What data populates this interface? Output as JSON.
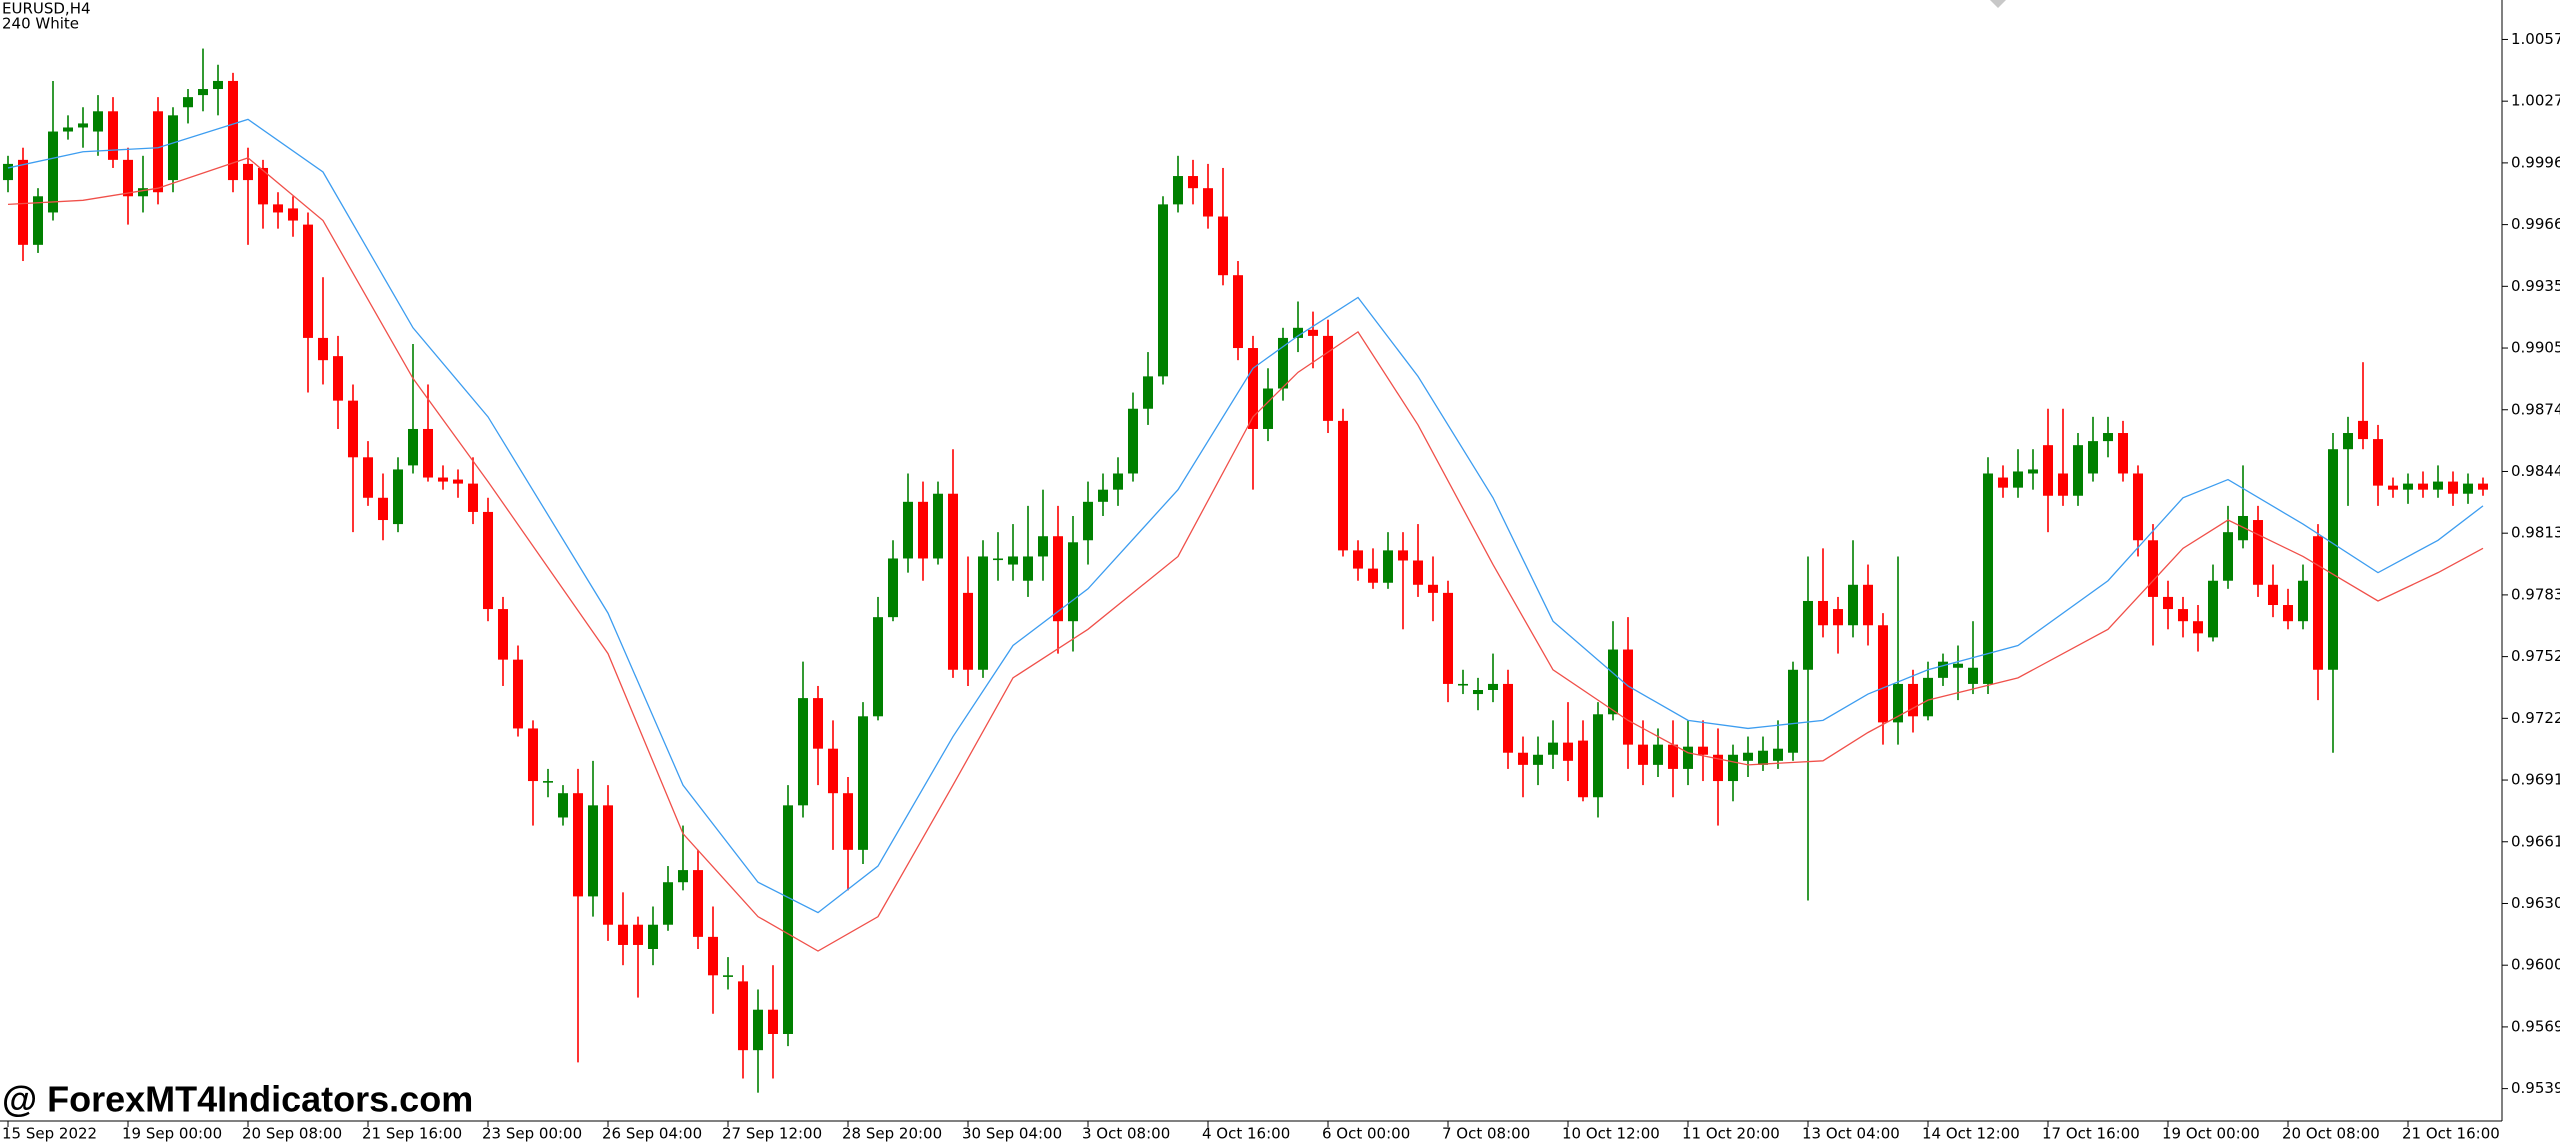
{
  "chart_data": {
    "type": "candlestick",
    "title": "EURUSD,H4",
    "subtitle": "240 White",
    "watermark": "@ ForexMT4Indicators.com",
    "up_color": "#008000",
    "down_color": "#ff0000",
    "ylim": [
      0.9523,
      1.0077
    ],
    "yticks": [
      {
        "value": 1.00575,
        "label": "1.00575"
      },
      {
        "value": 1.0027,
        "label": "1.00270"
      },
      {
        "value": 0.99965,
        "label": "0.99965"
      },
      {
        "value": 0.9966,
        "label": "0.99660"
      },
      {
        "value": 0.99355,
        "label": "0.99355"
      },
      {
        "value": 0.9905,
        "label": "0.99050"
      },
      {
        "value": 0.98745,
        "label": "0.98745"
      },
      {
        "value": 0.9844,
        "label": "0.98440"
      },
      {
        "value": 0.98135,
        "label": "0.98135"
      },
      {
        "value": 0.9783,
        "label": "0.97830"
      },
      {
        "value": 0.97525,
        "label": "0.97525"
      },
      {
        "value": 0.9722,
        "label": "0.97220"
      },
      {
        "value": 0.96915,
        "label": "0.96915"
      },
      {
        "value": 0.9661,
        "label": "0.96610"
      },
      {
        "value": 0.96305,
        "label": "0.96305"
      },
      {
        "value": 0.96,
        "label": "0.96000"
      },
      {
        "value": 0.95695,
        "label": "0.95695"
      },
      {
        "value": 0.9539,
        "label": "0.95390"
      }
    ],
    "categories": [
      "15 Sep 2022",
      null,
      null,
      null,
      null,
      null,
      null,
      null,
      "19 Sep 00:00",
      null,
      null,
      null,
      null,
      null,
      null,
      null,
      "20 Sep 08:00",
      null,
      null,
      null,
      null,
      null,
      null,
      null,
      "21 Sep 16:00",
      null,
      null,
      null,
      null,
      null,
      null,
      null,
      "23 Sep 00:00",
      null,
      null,
      null,
      null,
      null,
      null,
      null,
      "26 Sep 04:00",
      null,
      null,
      null,
      null,
      null,
      null,
      null,
      "27 Sep 12:00",
      null,
      null,
      null,
      null,
      null,
      null,
      null,
      "28 Sep 20:00",
      null,
      null,
      null,
      null,
      null,
      null,
      null,
      "30 Sep 04:00",
      null,
      null,
      null,
      null,
      null,
      null,
      null,
      "3 Oct 08:00",
      null,
      null,
      null,
      null,
      null,
      null,
      null,
      "4 Oct 16:00",
      null,
      null,
      null,
      null,
      null,
      null,
      null,
      "6 Oct 00:00",
      null,
      null,
      null,
      null,
      null,
      null,
      null,
      "7 Oct 08:00",
      null,
      null,
      null,
      null,
      null,
      null,
      null,
      "10 Oct 12:00",
      null,
      null,
      null,
      null,
      null,
      null,
      null,
      "11 Oct 20:00",
      null,
      null,
      null,
      null,
      null,
      null,
      null,
      "13 Oct 04:00",
      null,
      null,
      null,
      null,
      null,
      null,
      null,
      "14 Oct 12:00",
      null,
      null,
      null,
      null,
      null,
      null,
      null,
      "17 Oct 16:00",
      null,
      null,
      null,
      null,
      null,
      null,
      null,
      "19 Oct 00:00",
      null,
      null,
      null,
      null,
      null,
      null,
      null,
      "20 Oct 08:00",
      null,
      null,
      null,
      null,
      null,
      null,
      null,
      "21 Oct 16:00",
      null,
      null,
      null,
      null,
      null
    ],
    "open": [
      0.9988,
      0.9998,
      0.9956,
      0.9972,
      1.0012,
      1.0014,
      1.0012,
      1.0022,
      0.9998,
      0.998,
      1.0022,
      0.9988,
      1.0024,
      1.003,
      1.0033,
      1.0037,
      0.9996,
      0.9994,
      0.9976,
      0.9974,
      0.9966,
      0.991,
      0.9901,
      0.9879,
      0.9851,
      0.9831,
      0.9818,
      0.9847,
      0.9865,
      0.9841,
      0.984,
      0.9838,
      0.9824,
      0.9776,
      0.9751,
      0.9717,
      0.9691,
      0.9673,
      0.9685,
      0.9634,
      0.9679,
      0.962,
      0.962,
      0.9608,
      0.962,
      0.9641,
      0.9647,
      0.9614,
      0.9595,
      0.9592,
      0.9558,
      0.9578,
      0.9566,
      0.9679,
      0.9732,
      0.9707,
      0.9685,
      0.9657,
      0.9723,
      0.9772,
      0.9801,
      0.9829,
      0.9801,
      0.9833,
      0.9784,
      0.9746,
      0.9801,
      0.9798,
      0.979,
      0.9802,
      0.9812,
      0.977,
      0.981,
      0.9829,
      0.9835,
      0.9843,
      0.9875,
      0.9891,
      0.9976,
      0.999,
      0.9984,
      0.997,
      0.9941,
      0.9905,
      0.9865,
      0.9885,
      0.991,
      0.9914,
      0.9911,
      0.9869,
      0.9805,
      0.9796,
      0.9789,
      0.9805,
      0.98,
      0.9788,
      0.9784,
      0.9739,
      0.9734,
      0.9736,
      0.9739,
      0.9705,
      0.9699,
      0.9704,
      0.971,
      0.9711,
      0.9683,
      0.9724,
      0.9756,
      0.9709,
      0.9699,
      0.9709,
      0.9697,
      0.9708,
      0.9704,
      0.9691,
      0.9701,
      0.9699,
      0.9701,
      0.9705,
      0.9746,
      0.978,
      0.9776,
      0.9768,
      0.9788,
      0.9768,
      0.972,
      0.9739,
      0.9723,
      0.9742,
      0.9747,
      0.9739,
      0.9739,
      0.9841,
      0.9836,
      0.9843,
      0.9857,
      0.9843,
      0.9832,
      0.9843,
      0.9859,
      0.9863,
      0.9843,
      0.981,
      0.9782,
      0.9776,
      0.977,
      0.9762,
      0.979,
      0.981,
      0.982,
      0.9788,
      0.9778,
      0.977,
      0.9812,
      0.9746,
      0.9855,
      0.9869,
      0.986,
      0.9837,
      0.9835,
      0.9838,
      0.9835,
      0.9839,
      0.9833,
      0.9838
    ],
    "high": [
      1.0,
      1.0004,
      0.9984,
      1.0037,
      1.002,
      1.0024,
      1.003,
      1.0029,
      1.0004,
      1.0,
      1.0029,
      1.0024,
      1.0033,
      1.0053,
      1.0045,
      1.0041,
      1.0004,
      0.9998,
      0.9982,
      0.998,
      0.9972,
      0.994,
      0.9911,
      0.9887,
      0.9859,
      0.9843,
      0.9851,
      0.9907,
      0.9887,
      0.9847,
      0.9845,
      0.9851,
      0.9831,
      0.9782,
      0.9758,
      0.9721,
      0.9697,
      0.9689,
      0.9697,
      0.9701,
      0.9689,
      0.9636,
      0.9624,
      0.9629,
      0.9649,
      0.9669,
      0.9657,
      0.9629,
      0.9604,
      0.96,
      0.9588,
      0.96,
      0.9689,
      0.975,
      0.9738,
      0.9721,
      0.9693,
      0.973,
      0.9782,
      0.981,
      0.9843,
      0.9839,
      0.9839,
      0.9855,
      0.9802,
      0.981,
      0.9814,
      0.9818,
      0.9827,
      0.9835,
      0.9827,
      0.9822,
      0.9839,
      0.9843,
      0.9851,
      0.9883,
      0.9903,
      0.998,
      1.0,
      0.9998,
      0.9996,
      0.9994,
      0.9948,
      0.9911,
      0.9895,
      0.9915,
      0.9928,
      0.9923,
      0.9919,
      0.9875,
      0.981,
      0.9806,
      0.9814,
      0.9814,
      0.9818,
      0.9802,
      0.979,
      0.9746,
      0.9742,
      0.9754,
      0.9746,
      0.9713,
      0.9713,
      0.9721,
      0.973,
      0.9721,
      0.973,
      0.977,
      0.9772,
      0.9721,
      0.9717,
      0.9721,
      0.9721,
      0.9721,
      0.9717,
      0.9709,
      0.9713,
      0.9713,
      0.9721,
      0.975,
      0.9802,
      0.9806,
      0.9782,
      0.981,
      0.9798,
      0.9774,
      0.9802,
      0.9746,
      0.975,
      0.9754,
      0.9758,
      0.977,
      0.9851,
      0.9847,
      0.9855,
      0.9855,
      0.9875,
      0.9875,
      0.9863,
      0.9871,
      0.9871,
      0.9869,
      0.9847,
      0.9818,
      0.979,
      0.9782,
      0.9778,
      0.9798,
      0.9827,
      0.9847,
      0.9827,
      0.9798,
      0.9786,
      0.9798,
      0.9818,
      0.9863,
      0.9871,
      0.9898,
      0.9867,
      0.9841,
      0.9843,
      0.9844,
      0.9847,
      0.9844,
      0.9843,
      0.9841
    ],
    "low": [
      0.9982,
      0.9948,
      0.9952,
      0.9968,
      1.0008,
      1.0004,
      1.0,
      0.9994,
      0.9966,
      0.9972,
      0.9976,
      0.9982,
      1.0016,
      1.0022,
      1.002,
      0.9982,
      0.9956,
      0.9964,
      0.9964,
      0.996,
      0.9883,
      0.9887,
      0.9865,
      0.9814,
      0.9827,
      0.981,
      0.9814,
      0.9843,
      0.9839,
      0.9835,
      0.9831,
      0.9818,
      0.977,
      0.9738,
      0.9713,
      0.9669,
      0.9683,
      0.9669,
      0.9552,
      0.9624,
      0.9612,
      0.96,
      0.9584,
      0.96,
      0.9617,
      0.9637,
      0.9608,
      0.9576,
      0.9588,
      0.9544,
      0.9537,
      0.9544,
      0.956,
      0.9673,
      0.9689,
      0.9657,
      0.9637,
      0.965,
      0.9721,
      0.977,
      0.9794,
      0.979,
      0.9798,
      0.9742,
      0.9738,
      0.9742,
      0.979,
      0.979,
      0.9782,
      0.979,
      0.9754,
      0.9755,
      0.9798,
      0.9822,
      0.9827,
      0.9839,
      0.9867,
      0.9887,
      0.9972,
      0.9976,
      0.9964,
      0.9936,
      0.9899,
      0.9835,
      0.9859,
      0.9879,
      0.9903,
      0.9895,
      0.9863,
      0.9802,
      0.979,
      0.9786,
      0.9786,
      0.9766,
      0.9782,
      0.977,
      0.973,
      0.9734,
      0.9726,
      0.973,
      0.9697,
      0.9683,
      0.9689,
      0.9697,
      0.9691,
      0.9681,
      0.9673,
      0.9721,
      0.9697,
      0.9689,
      0.9693,
      0.9683,
      0.9689,
      0.9691,
      0.9669,
      0.9681,
      0.9693,
      0.9696,
      0.9697,
      0.9701,
      0.9632,
      0.9762,
      0.9754,
      0.9762,
      0.9758,
      0.9709,
      0.9709,
      0.9715,
      0.9721,
      0.9738,
      0.9731,
      0.9734,
      0.9734,
      0.9831,
      0.9831,
      0.9835,
      0.9814,
      0.9827,
      0.9827,
      0.9839,
      0.9851,
      0.9839,
      0.9802,
      0.9758,
      0.9766,
      0.9762,
      0.9755,
      0.976,
      0.9786,
      0.9806,
      0.9782,
      0.9772,
      0.9766,
      0.9766,
      0.9731,
      0.9705,
      0.9827,
      0.9855,
      0.9827,
      0.9831,
      0.9828,
      0.9831,
      0.9831,
      0.9827,
      0.9828,
      0.9832
    ],
    "close": [
      0.9996,
      0.9956,
      0.998,
      1.0012,
      1.0014,
      1.0016,
      1.0022,
      0.9998,
      0.998,
      0.9984,
      0.9982,
      1.002,
      1.0029,
      1.0033,
      1.0037,
      0.9988,
      0.9988,
      0.9976,
      0.9972,
      0.9968,
      0.991,
      0.9899,
      0.9879,
      0.9851,
      0.9831,
      0.982,
      0.9845,
      0.9865,
      0.9841,
      0.9839,
      0.9838,
      0.9824,
      0.9776,
      0.9751,
      0.9717,
      0.9691,
      0.9691,
      0.9685,
      0.9634,
      0.9679,
      0.962,
      0.961,
      0.961,
      0.962,
      0.9641,
      0.9647,
      0.9614,
      0.9595,
      0.9595,
      0.9558,
      0.9578,
      0.9566,
      0.9679,
      0.9732,
      0.9707,
      0.9685,
      0.9657,
      0.9723,
      0.9772,
      0.9801,
      0.9829,
      0.9801,
      0.9833,
      0.9746,
      0.9746,
      0.9802,
      0.9801,
      0.9802,
      0.9802,
      0.9812,
      0.977,
      0.9809,
      0.9829,
      0.9835,
      0.9843,
      0.9875,
      0.9891,
      0.9976,
      0.999,
      0.9984,
      0.997,
      0.9941,
      0.9905,
      0.9865,
      0.9885,
      0.991,
      0.9915,
      0.9911,
      0.9869,
      0.9805,
      0.9796,
      0.9789,
      0.9805,
      0.98,
      0.9788,
      0.9784,
      0.9739,
      0.9739,
      0.9736,
      0.9739,
      0.9705,
      0.9699,
      0.9704,
      0.971,
      0.9701,
      0.9683,
      0.9724,
      0.9756,
      0.9709,
      0.9699,
      0.9709,
      0.9697,
      0.9708,
      0.9704,
      0.9691,
      0.9704,
      0.9705,
      0.9706,
      0.9707,
      0.9746,
      0.978,
      0.9768,
      0.9768,
      0.9788,
      0.9768,
      0.972,
      0.9739,
      0.9723,
      0.9742,
      0.975,
      0.9749,
      0.9747,
      0.9843,
      0.9836,
      0.9844,
      0.9845,
      0.9832,
      0.9832,
      0.9857,
      0.9859,
      0.9863,
      0.9843,
      0.981,
      0.9782,
      0.9776,
      0.977,
      0.9764,
      0.979,
      0.9814,
      0.9822,
      0.9788,
      0.9778,
      0.977,
      0.979,
      0.9746,
      0.9855,
      0.9863,
      0.986,
      0.9837,
      0.9835,
      0.9838,
      0.9835,
      0.9839,
      0.9833,
      0.9838,
      0.9835
    ],
    "lines": [
      {
        "color": "#3d9df0",
        "x": [
          0,
          5,
          10,
          16,
          21,
          27,
          32,
          40,
          45,
          50,
          54,
          58,
          63,
          67,
          72,
          78,
          83,
          86,
          90,
          94,
          99,
          103,
          108,
          112,
          116,
          121,
          124,
          128,
          134,
          140,
          145,
          148,
          153,
          158,
          162,
          165
        ],
        "values": [
          0.9994,
          1.0002,
          1.0004,
          1.0018,
          0.9992,
          0.9915,
          0.9871,
          0.9774,
          0.9689,
          0.9641,
          0.9626,
          0.9649,
          0.9713,
          0.9758,
          0.9786,
          0.9835,
          0.9895,
          0.9911,
          0.993,
          0.9891,
          0.9831,
          0.977,
          0.9738,
          0.9721,
          0.9717,
          0.9721,
          0.9734,
          0.9746,
          0.9758,
          0.979,
          0.9831,
          0.984,
          0.9818,
          0.9794,
          0.981,
          0.9827
        ]
      },
      {
        "color": "#f0504a",
        "x": [
          0,
          5,
          10,
          16,
          21,
          27,
          32,
          40,
          45,
          50,
          54,
          58,
          63,
          67,
          72,
          78,
          83,
          86,
          90,
          94,
          99,
          103,
          108,
          112,
          116,
          121,
          124,
          128,
          134,
          140,
          145,
          148,
          153,
          158,
          162,
          165
        ],
        "values": [
          0.9976,
          0.9978,
          0.9984,
          0.9999,
          0.9968,
          0.989,
          0.9839,
          0.9754,
          0.9665,
          0.9624,
          0.9607,
          0.9624,
          0.9689,
          0.9742,
          0.9766,
          0.9802,
          0.9871,
          0.9893,
          0.9913,
          0.9867,
          0.9798,
          0.9746,
          0.9721,
          0.9705,
          0.9699,
          0.9701,
          0.9715,
          0.9731,
          0.9742,
          0.9766,
          0.9806,
          0.982,
          0.9802,
          0.978,
          0.9794,
          0.9806
        ]
      }
    ]
  }
}
